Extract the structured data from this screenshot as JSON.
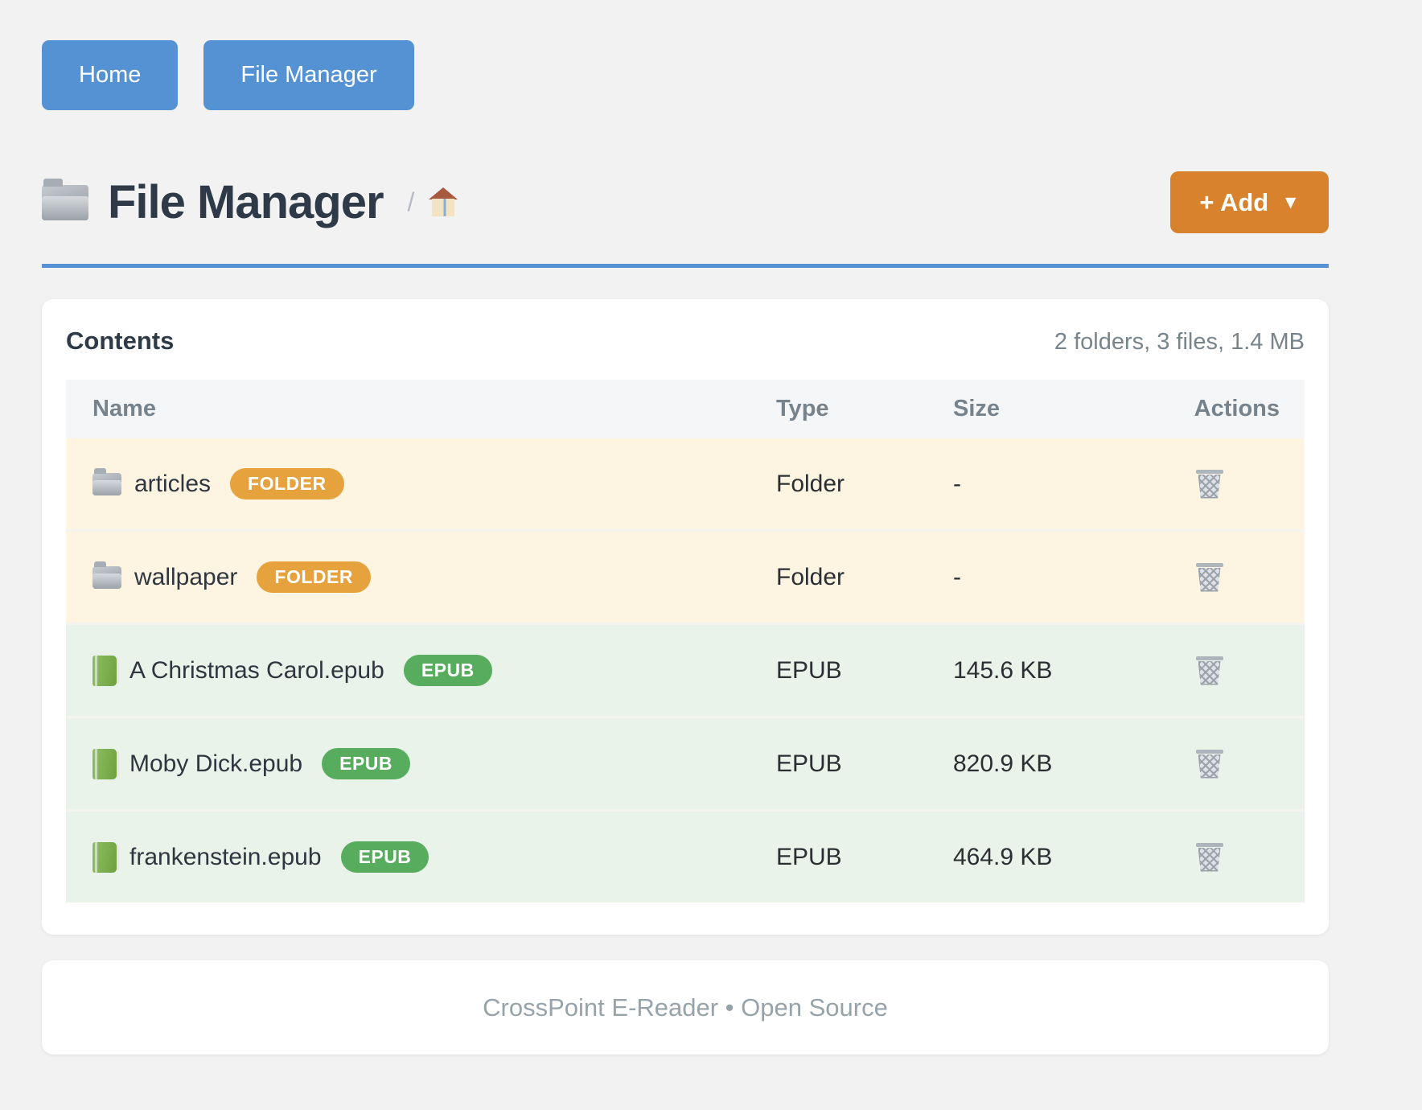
{
  "nav": {
    "home_label": "Home",
    "file_manager_label": "File Manager"
  },
  "header": {
    "title": "File Manager",
    "breadcrumb_separator": "/",
    "add_button": {
      "label": "+ Add",
      "caret": "▼"
    }
  },
  "icons": {
    "title_icon": "folder-icon",
    "breadcrumb_icon": "home-icon",
    "folder_row_icon": "folder-icon",
    "epub_row_icon": "book-icon",
    "actions_icon": "trash-icon"
  },
  "contents": {
    "title": "Contents",
    "summary": "2 folders, 3 files, 1.4 MB",
    "columns": [
      "Name",
      "Type",
      "Size",
      "Actions"
    ],
    "rows": [
      {
        "name": "articles",
        "badge": "FOLDER",
        "kind": "folder",
        "type": "Folder",
        "size": "-"
      },
      {
        "name": "wallpaper",
        "badge": "FOLDER",
        "kind": "folder",
        "type": "Folder",
        "size": "-"
      },
      {
        "name": "A Christmas Carol.epub",
        "badge": "EPUB",
        "kind": "epub",
        "type": "EPUB",
        "size": "145.6 KB"
      },
      {
        "name": "Moby Dick.epub",
        "badge": "EPUB",
        "kind": "epub",
        "type": "EPUB",
        "size": "820.9 KB"
      },
      {
        "name": "frankenstein.epub",
        "badge": "EPUB",
        "kind": "epub",
        "type": "EPUB",
        "size": "464.9 KB"
      }
    ]
  },
  "footer": {
    "text": "CrossPoint E-Reader • Open Source"
  },
  "colors": {
    "page_bg": "#f2f2f3",
    "accent_blue": "#5592d3",
    "accent_orange": "#d9822d",
    "title_color": "#2e3a47",
    "thead_bg": "#f5f6f8",
    "badge_folder": "#e6a23c",
    "badge_epub": "#57ac5e",
    "row_folder_bg": "#fdf5e1",
    "row_epub_bg": "#e9f3e9"
  }
}
